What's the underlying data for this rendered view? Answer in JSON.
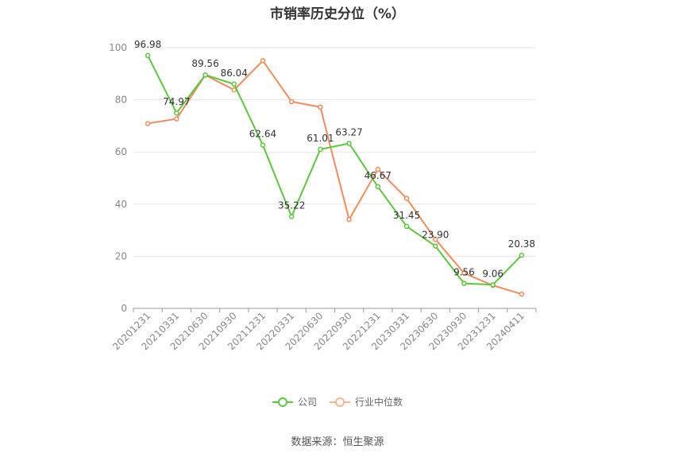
{
  "chart_data": {
    "type": "line",
    "title": "市销率历史分位（%）",
    "categories": [
      "20201231",
      "20210331",
      "20210630",
      "20210930",
      "20211231",
      "20220331",
      "20220630",
      "20220930",
      "20221231",
      "20230331",
      "20230630",
      "20230930",
      "20231231",
      "20240411"
    ],
    "ylim": [
      0,
      100
    ],
    "yticks": [
      0,
      20,
      40,
      60,
      80,
      100
    ],
    "grid": true,
    "legend_position": "bottom",
    "series": [
      {
        "name": "公司",
        "color": "#5ac83c",
        "values": [
          96.98,
          74.97,
          89.56,
          86.04,
          62.64,
          35.22,
          61.01,
          63.27,
          46.67,
          31.45,
          23.9,
          9.56,
          9.06,
          20.38
        ],
        "labels": [
          "96.98",
          "74.97",
          "89.56",
          "86.04",
          "62.64",
          "35.22",
          "61.01",
          "63.27",
          "46.67",
          "31.45",
          "23.90",
          "9.56",
          "9.06",
          "20.38"
        ]
      },
      {
        "name": "行业中位数",
        "color": "#f08c5a",
        "values": [
          70.9,
          72.7,
          89.5,
          83.8,
          95.0,
          79.3,
          77.2,
          34.1,
          53.3,
          42.2,
          26.5,
          13.5,
          8.8,
          5.5
        ]
      }
    ]
  },
  "legend": {
    "company": "公司",
    "industry": "行业中位数"
  },
  "source": "数据来源：恒生聚源"
}
